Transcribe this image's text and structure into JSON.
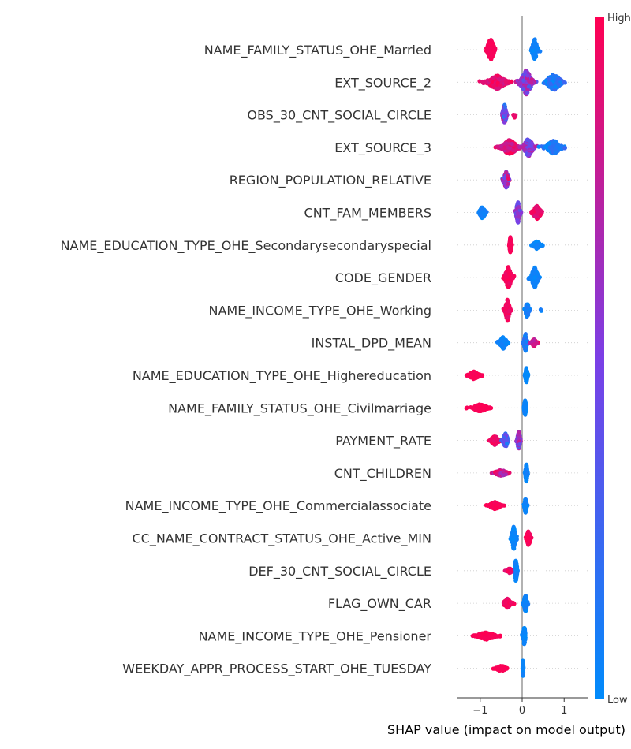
{
  "chart_data": {
    "type": "beeswarm",
    "xlabel": "SHAP value (impact on model output)",
    "xticks": [
      -1,
      0,
      1
    ],
    "xtick_labels": [
      "−1",
      "0",
      "1"
    ],
    "xlim": [
      -1.55,
      1.55
    ],
    "colorbar": {
      "high_label": "High",
      "low_label": "Low",
      "high_color": "#ff0052",
      "low_color": "#008bfb"
    },
    "features": [
      {
        "name": "NAME_FAMILY_STATUS_OHE_Married",
        "clusters": [
          {
            "x": -0.75,
            "spread": 0.18,
            "height": 15,
            "n": 160,
            "c0": 0.95,
            "c1": 1.0
          },
          {
            "x": 0.3,
            "spread": 0.14,
            "height": 14,
            "n": 140,
            "c0": 0.0,
            "c1": 0.1
          }
        ]
      },
      {
        "name": "EXT_SOURCE_2",
        "clusters": [
          {
            "x": -0.6,
            "spread": 0.5,
            "height": 9,
            "n": 180,
            "c0": 0.8,
            "c1": 1.0
          },
          {
            "x": 0.1,
            "spread": 0.3,
            "height": 16,
            "n": 220,
            "c0": 0.3,
            "c1": 0.8
          },
          {
            "x": 0.75,
            "spread": 0.38,
            "height": 11,
            "n": 160,
            "c0": 0.0,
            "c1": 0.25
          }
        ]
      },
      {
        "name": "OBS_30_CNT_SOCIAL_CIRCLE",
        "clusters": [
          {
            "x": -0.42,
            "spread": 0.1,
            "height": 13,
            "n": 140,
            "c0": 0.1,
            "c1": 0.9
          },
          {
            "x": -0.18,
            "spread": 0.05,
            "height": 4,
            "n": 12,
            "c0": 0.9,
            "c1": 1.0
          }
        ]
      },
      {
        "name": "EXT_SOURCE_3",
        "clusters": [
          {
            "x": -0.3,
            "spread": 0.38,
            "height": 10,
            "n": 180,
            "c0": 0.75,
            "c1": 1.0
          },
          {
            "x": 0.15,
            "spread": 0.25,
            "height": 12,
            "n": 140,
            "c0": 0.35,
            "c1": 0.75
          },
          {
            "x": 0.75,
            "spread": 0.4,
            "height": 9,
            "n": 150,
            "c0": 0.0,
            "c1": 0.25
          }
        ]
      },
      {
        "name": "REGION_POPULATION_RELATIVE",
        "clusters": [
          {
            "x": -0.38,
            "spread": 0.12,
            "height": 12,
            "n": 150,
            "c0": 0.15,
            "c1": 0.95
          }
        ]
      },
      {
        "name": "CNT_FAM_MEMBERS",
        "clusters": [
          {
            "x": -0.95,
            "spread": 0.16,
            "height": 8,
            "n": 90,
            "c0": 0.0,
            "c1": 0.1
          },
          {
            "x": -0.1,
            "spread": 0.1,
            "height": 14,
            "n": 140,
            "c0": 0.35,
            "c1": 0.7
          },
          {
            "x": 0.35,
            "spread": 0.22,
            "height": 9,
            "n": 120,
            "c0": 0.85,
            "c1": 1.0
          }
        ]
      },
      {
        "name": "NAME_EDUCATION_TYPE_OHE_Secondarysecondaryspecial",
        "clusters": [
          {
            "x": -0.28,
            "spread": 0.05,
            "height": 11,
            "n": 120,
            "c0": 0.95,
            "c1": 1.0
          },
          {
            "x": 0.35,
            "spread": 0.2,
            "height": 5,
            "n": 80,
            "c0": 0.0,
            "c1": 0.1
          }
        ]
      },
      {
        "name": "CODE_GENDER",
        "clusters": [
          {
            "x": -0.33,
            "spread": 0.17,
            "height": 14,
            "n": 180,
            "c0": 0.92,
            "c1": 1.0
          },
          {
            "x": 0.3,
            "spread": 0.18,
            "height": 13,
            "n": 160,
            "c0": 0.0,
            "c1": 0.1
          }
        ]
      },
      {
        "name": "NAME_INCOME_TYPE_OHE_Working",
        "clusters": [
          {
            "x": -0.35,
            "spread": 0.12,
            "height": 14,
            "n": 160,
            "c0": 0.9,
            "c1": 1.0
          },
          {
            "x": 0.12,
            "spread": 0.1,
            "height": 10,
            "n": 90,
            "c0": 0.0,
            "c1": 0.15
          },
          {
            "x": 0.45,
            "spread": 0.03,
            "height": 2,
            "n": 5,
            "c0": 0.0,
            "c1": 0.1
          }
        ]
      },
      {
        "name": "INSTAL_DPD_MEAN",
        "clusters": [
          {
            "x": -0.45,
            "spread": 0.18,
            "height": 8,
            "n": 100,
            "c0": 0.0,
            "c1": 0.1
          },
          {
            "x": 0.08,
            "spread": 0.08,
            "height": 12,
            "n": 110,
            "c0": 0.0,
            "c1": 0.3
          },
          {
            "x": 0.28,
            "spread": 0.12,
            "height": 5,
            "n": 50,
            "c0": 0.7,
            "c1": 1.0
          }
        ]
      },
      {
        "name": "NAME_EDUCATION_TYPE_OHE_Highereducation",
        "clusters": [
          {
            "x": -1.15,
            "spread": 0.28,
            "height": 5,
            "n": 120,
            "c0": 0.97,
            "c1": 1.0
          },
          {
            "x": 0.1,
            "spread": 0.06,
            "height": 10,
            "n": 120,
            "c0": 0.0,
            "c1": 0.08
          }
        ]
      },
      {
        "name": "NAME_FAMILY_STATUS_OHE_Civilmarriage",
        "clusters": [
          {
            "x": -1.0,
            "spread": 0.38,
            "height": 5,
            "n": 130,
            "c0": 0.97,
            "c1": 1.0
          },
          {
            "x": 0.07,
            "spread": 0.06,
            "height": 10,
            "n": 110,
            "c0": 0.0,
            "c1": 0.08
          }
        ]
      },
      {
        "name": "PAYMENT_RATE",
        "clusters": [
          {
            "x": -0.65,
            "spread": 0.22,
            "height": 6,
            "n": 100,
            "c0": 0.88,
            "c1": 1.0
          },
          {
            "x": -0.4,
            "spread": 0.12,
            "height": 10,
            "n": 100,
            "c0": 0.1,
            "c1": 0.5
          },
          {
            "x": -0.08,
            "spread": 0.07,
            "height": 13,
            "n": 110,
            "c0": 0.35,
            "c1": 0.8
          }
        ]
      },
      {
        "name": "CNT_CHILDREN",
        "clusters": [
          {
            "x": -0.5,
            "spread": 0.35,
            "height": 4,
            "n": 110,
            "c0": 0.6,
            "c1": 1.0
          },
          {
            "x": 0.1,
            "spread": 0.05,
            "height": 13,
            "n": 130,
            "c0": 0.0,
            "c1": 0.1
          }
        ]
      },
      {
        "name": "NAME_INCOME_TYPE_OHE_Commercialassociate",
        "clusters": [
          {
            "x": -0.65,
            "spread": 0.3,
            "height": 5,
            "n": 120,
            "c0": 0.96,
            "c1": 1.0
          },
          {
            "x": 0.08,
            "spread": 0.06,
            "height": 10,
            "n": 110,
            "c0": 0.0,
            "c1": 0.08
          }
        ]
      },
      {
        "name": "CC_NAME_CONTRACT_STATUS_OHE_Active_MIN",
        "clusters": [
          {
            "x": -0.2,
            "spread": 0.1,
            "height": 15,
            "n": 170,
            "c0": 0.0,
            "c1": 0.1
          },
          {
            "x": 0.15,
            "spread": 0.1,
            "height": 10,
            "n": 100,
            "c0": 0.93,
            "c1": 1.0
          }
        ]
      },
      {
        "name": "DEF_30_CNT_SOCIAL_CIRCLE",
        "clusters": [
          {
            "x": -0.15,
            "spread": 0.07,
            "height": 14,
            "n": 130,
            "c0": 0.0,
            "c1": 0.12
          },
          {
            "x": -0.3,
            "spread": 0.18,
            "height": 3,
            "n": 40,
            "c0": 0.85,
            "c1": 1.0
          }
        ]
      },
      {
        "name": "FLAG_OWN_CAR",
        "clusters": [
          {
            "x": -0.35,
            "spread": 0.2,
            "height": 6,
            "n": 100,
            "c0": 0.9,
            "c1": 1.0
          },
          {
            "x": 0.08,
            "spread": 0.08,
            "height": 13,
            "n": 130,
            "c0": 0.0,
            "c1": 0.12
          }
        ]
      },
      {
        "name": "NAME_INCOME_TYPE_OHE_Pensioner",
        "clusters": [
          {
            "x": -0.85,
            "spread": 0.5,
            "height": 5,
            "n": 150,
            "c0": 0.96,
            "c1": 1.0
          },
          {
            "x": 0.05,
            "spread": 0.07,
            "height": 12,
            "n": 110,
            "c0": 0.0,
            "c1": 0.08
          }
        ]
      },
      {
        "name": "WEEKDAY_APPR_PROCESS_START_OHE_TUESDAY",
        "clusters": [
          {
            "x": -0.5,
            "spread": 0.25,
            "height": 4,
            "n": 100,
            "c0": 0.97,
            "c1": 1.0
          },
          {
            "x": 0.02,
            "spread": 0.02,
            "height": 12,
            "n": 80,
            "c0": 0.0,
            "c1": 0.08
          }
        ]
      }
    ]
  }
}
